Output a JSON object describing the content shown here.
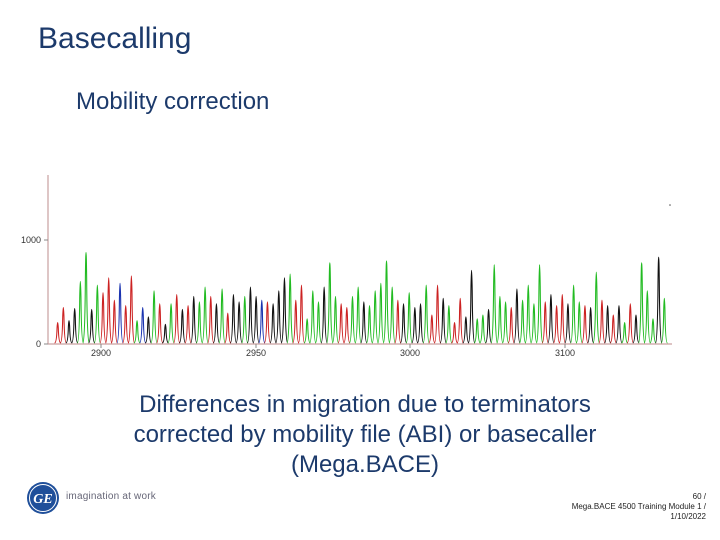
{
  "slide": {
    "title": "Basecalling",
    "subtitle": "Mobility correction",
    "caption_lines": [
      "Differences in migration due to terminators",
      "corrected by mobility file (ABI) or basecaller",
      "(Mega.BACE)"
    ]
  },
  "brand": {
    "logo_text": "GE",
    "tagline": "imagination at work",
    "logo_color": "#1f4f9a"
  },
  "footer": {
    "page": "60 /",
    "line2": "Mega.BACE 4500 Training Module 1 /",
    "date": "1/10/2022"
  },
  "chart_data": {
    "type": "line",
    "xlim": [
      2720,
      3180
    ],
    "ylim": [
      0,
      1500
    ],
    "x_ticks": [
      2900,
      2950,
      3000,
      3100
    ],
    "x_tick_labels": [
      "2900",
      "2950",
      "3000",
      "3100"
    ],
    "y_ticks": [
      0,
      1000
    ],
    "y_tick_labels": [
      "0",
      "1000"
    ],
    "colors": {
      "A": "#22bb22",
      "C": "#1a33b0",
      "G": "#111111",
      "T": "#cc2222",
      "axis": "#c9a0a0"
    },
    "series": [
      {
        "values": [
          [
            1,
            0.22,
            "T"
          ],
          [
            2,
            0.38,
            "T"
          ],
          [
            3,
            0.24,
            "G"
          ],
          [
            4,
            0.37,
            "G"
          ],
          [
            5,
            0.66,
            "A"
          ],
          [
            6,
            0.97,
            "A"
          ],
          [
            7,
            0.36,
            "G"
          ],
          [
            8,
            0.62,
            "A"
          ],
          [
            9,
            0.54,
            "T"
          ],
          [
            10,
            0.7,
            "T"
          ],
          [
            11,
            0.46,
            "T"
          ],
          [
            12,
            0.64,
            "C"
          ],
          [
            13,
            0.4,
            "T"
          ],
          [
            14,
            0.72,
            "T"
          ],
          [
            15,
            0.24,
            "A"
          ],
          [
            16,
            0.38,
            "C"
          ],
          [
            17,
            0.28,
            "G"
          ],
          [
            18,
            0.56,
            "A"
          ],
          [
            19,
            0.42,
            "T"
          ],
          [
            20,
            0.2,
            "G"
          ],
          [
            21,
            0.42,
            "A"
          ],
          [
            22,
            0.52,
            "T"
          ],
          [
            23,
            0.36,
            "G"
          ],
          [
            24,
            0.4,
            "T"
          ],
          [
            25,
            0.5,
            "G"
          ],
          [
            26,
            0.44,
            "A"
          ],
          [
            27,
            0.6,
            "A"
          ],
          [
            28,
            0.5,
            "T"
          ],
          [
            29,
            0.42,
            "G"
          ],
          [
            30,
            0.58,
            "A"
          ],
          [
            31,
            0.32,
            "T"
          ],
          [
            32,
            0.52,
            "G"
          ],
          [
            33,
            0.44,
            "G"
          ],
          [
            34,
            0.5,
            "A"
          ],
          [
            35,
            0.6,
            "G"
          ],
          [
            36,
            0.5,
            "G"
          ],
          [
            37,
            0.46,
            "C"
          ],
          [
            38,
            0.44,
            "T"
          ],
          [
            39,
            0.42,
            "G"
          ],
          [
            40,
            0.56,
            "G"
          ],
          [
            41,
            0.7,
            "G"
          ],
          [
            42,
            0.74,
            "A"
          ],
          [
            43,
            0.46,
            "T"
          ],
          [
            44,
            0.62,
            "T"
          ],
          [
            45,
            0.26,
            "A"
          ],
          [
            46,
            0.56,
            "A"
          ],
          [
            47,
            0.44,
            "A"
          ],
          [
            48,
            0.6,
            "G"
          ],
          [
            49,
            0.86,
            "A"
          ],
          [
            50,
            0.5,
            "A"
          ],
          [
            51,
            0.42,
            "T"
          ],
          [
            52,
            0.38,
            "T"
          ],
          [
            53,
            0.5,
            "A"
          ],
          [
            54,
            0.6,
            "A"
          ],
          [
            55,
            0.44,
            "G"
          ],
          [
            56,
            0.4,
            "A"
          ],
          [
            57,
            0.56,
            "A"
          ],
          [
            58,
            0.64,
            "A"
          ],
          [
            59,
            0.88,
            "A"
          ],
          [
            60,
            0.6,
            "A"
          ],
          [
            61,
            0.46,
            "T"
          ],
          [
            62,
            0.42,
            "G"
          ],
          [
            63,
            0.54,
            "A"
          ],
          [
            64,
            0.38,
            "G"
          ],
          [
            65,
            0.42,
            "G"
          ],
          [
            66,
            0.62,
            "A"
          ],
          [
            67,
            0.3,
            "T"
          ],
          [
            68,
            0.62,
            "T"
          ],
          [
            69,
            0.48,
            "G"
          ],
          [
            70,
            0.4,
            "A"
          ],
          [
            71,
            0.22,
            "T"
          ],
          [
            72,
            0.48,
            "T"
          ],
          [
            73,
            0.28,
            "G"
          ],
          [
            74,
            0.78,
            "G"
          ],
          [
            75,
            0.26,
            "A"
          ],
          [
            76,
            0.3,
            "A"
          ],
          [
            77,
            0.36,
            "G"
          ],
          [
            78,
            0.84,
            "A"
          ],
          [
            79,
            0.5,
            "A"
          ],
          [
            80,
            0.44,
            "A"
          ],
          [
            81,
            0.38,
            "T"
          ],
          [
            82,
            0.58,
            "G"
          ],
          [
            83,
            0.46,
            "A"
          ],
          [
            84,
            0.62,
            "A"
          ],
          [
            85,
            0.42,
            "A"
          ],
          [
            86,
            0.84,
            "A"
          ],
          [
            87,
            0.44,
            "T"
          ],
          [
            88,
            0.52,
            "G"
          ],
          [
            89,
            0.4,
            "T"
          ],
          [
            90,
            0.52,
            "T"
          ],
          [
            91,
            0.42,
            "G"
          ],
          [
            92,
            0.62,
            "A"
          ],
          [
            93,
            0.44,
            "A"
          ],
          [
            94,
            0.4,
            "T"
          ],
          [
            95,
            0.38,
            "G"
          ],
          [
            96,
            0.76,
            "A"
          ],
          [
            97,
            0.46,
            "T"
          ],
          [
            98,
            0.4,
            "G"
          ],
          [
            99,
            0.3,
            "T"
          ],
          [
            100,
            0.4,
            "G"
          ],
          [
            101,
            0.22,
            "A"
          ],
          [
            102,
            0.42,
            "T"
          ],
          [
            103,
            0.3,
            "G"
          ],
          [
            104,
            0.86,
            "A"
          ],
          [
            105,
            0.56,
            "A"
          ],
          [
            106,
            0.26,
            "A"
          ],
          [
            107,
            0.92,
            "G"
          ],
          [
            108,
            0.48,
            "A"
          ]
        ]
      }
    ]
  }
}
